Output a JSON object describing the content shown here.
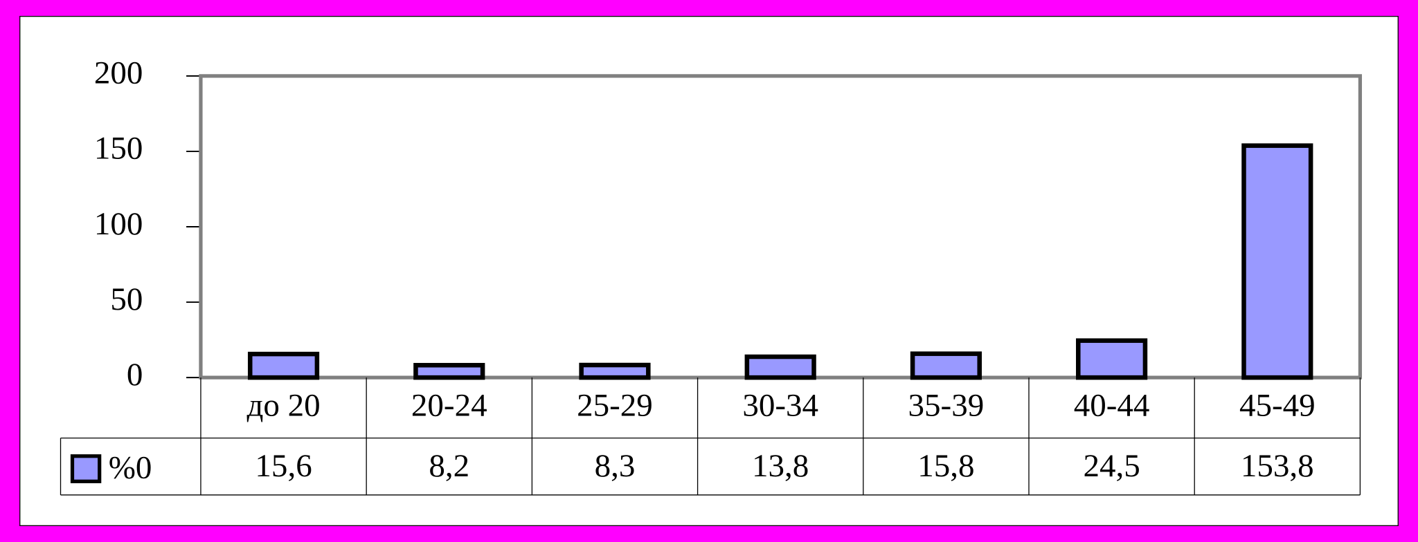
{
  "chart_data": {
    "type": "bar",
    "categories": [
      "до 20",
      "20-24",
      "25-29",
      "30-34",
      "35-39",
      "40-44",
      "45-49"
    ],
    "series": [
      {
        "name": "%0",
        "color": "#9999ff",
        "values": [
          15.6,
          8.2,
          8.3,
          13.8,
          15.8,
          24.5,
          153.8
        ],
        "value_labels": [
          "15,6",
          "8,2",
          "8,3",
          "13,8",
          "15,8",
          "24,5",
          "153,8"
        ]
      }
    ],
    "ylim": [
      0,
      200
    ],
    "yticks": [
      0,
      50,
      100,
      150,
      200
    ]
  }
}
